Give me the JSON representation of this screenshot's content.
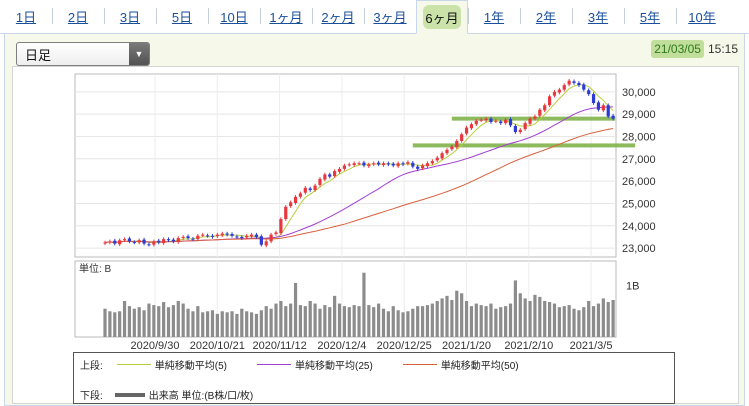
{
  "tabs": [
    {
      "label": "1日",
      "active": false
    },
    {
      "label": "2日",
      "active": false
    },
    {
      "label": "3日",
      "active": false
    },
    {
      "label": "5日",
      "active": false
    },
    {
      "label": "10日",
      "active": false
    },
    {
      "label": "1ヶ月",
      "active": false
    },
    {
      "label": "2ヶ月",
      "active": false
    },
    {
      "label": "3ヶ月",
      "active": false
    },
    {
      "label": "6ヶ月",
      "active": true
    },
    {
      "label": "1年",
      "active": false
    },
    {
      "label": "2年",
      "active": false
    },
    {
      "label": "3年",
      "active": false
    },
    {
      "label": "5年",
      "active": false
    },
    {
      "label": "10年",
      "active": false
    }
  ],
  "period_select": {
    "value": "日足"
  },
  "timestamp": {
    "date": "21/03/05",
    "time": "15:15"
  },
  "colors": {
    "up": "#e8383d",
    "down": "#2c3bd6",
    "ma5": "#b6cf3c",
    "ma25": "#a23ed2",
    "ma50": "#d9613d",
    "volume": "#8c8c8c",
    "highlight": "#7fb24a"
  },
  "price_axis": {
    "ticks": [
      "30,000",
      "29,000",
      "28,000",
      "27,000",
      "26,000",
      "25,000",
      "24,000",
      "23,000"
    ]
  },
  "volume_axis": {
    "unit_label": "単位: B",
    "tick": "1B"
  },
  "date_axis": {
    "labels": [
      "2020/9/30",
      "2020/10/21",
      "2020/11/12",
      "2020/12/4",
      "2020/12/25",
      "2021/1/20",
      "2021/2/10",
      "2021/3/5"
    ]
  },
  "legend": {
    "upper_label": "上段:",
    "lower_label": "下段:",
    "ma5": "単純移動平均(5)",
    "ma25": "単純移動平均(25)",
    "ma50": "単純移動平均(50)",
    "volume": "出来高 単位:(B株/口/枚)"
  },
  "chart_data": {
    "type": "candlestick",
    "ylim": [
      22600,
      30800
    ],
    "price_close": [
      23250,
      23300,
      23200,
      23350,
      23400,
      23300,
      23250,
      23350,
      23200,
      23150,
      23300,
      23250,
      23400,
      23350,
      23300,
      23450,
      23500,
      23450,
      23400,
      23550,
      23600,
      23550,
      23500,
      23600,
      23650,
      23600,
      23550,
      23500,
      23450,
      23550,
      23600,
      23500,
      23150,
      23300,
      23600,
      23700,
      24300,
      24850,
      25050,
      25300,
      25450,
      25700,
      25600,
      25800,
      26100,
      26300,
      26200,
      26450,
      26550,
      26700,
      26750,
      26800,
      26800,
      26700,
      26750,
      26800,
      26750,
      26800,
      26750,
      26700,
      26800,
      26750,
      26850,
      26650,
      26550,
      26700,
      26800,
      26900,
      27050,
      27250,
      27400,
      27550,
      27800,
      28100,
      28400,
      28550,
      28700,
      28750,
      28800,
      28650,
      28700,
      28600,
      28750,
      28500,
      28200,
      28300,
      28600,
      28800,
      28900,
      29200,
      29400,
      29800,
      30000,
      30100,
      30300,
      30500,
      30400,
      30300,
      30100,
      29900,
      29500,
      29200,
      29400,
      28900,
      28800
    ],
    "volume": [
      0.55,
      0.5,
      0.48,
      0.5,
      0.7,
      0.6,
      0.55,
      0.58,
      0.52,
      0.65,
      0.62,
      0.6,
      0.68,
      0.58,
      0.62,
      0.7,
      0.65,
      0.55,
      0.5,
      0.6,
      0.48,
      0.5,
      0.52,
      0.45,
      0.5,
      0.48,
      0.5,
      0.45,
      0.55,
      0.5,
      0.48,
      0.45,
      0.52,
      0.6,
      0.55,
      0.65,
      0.7,
      0.6,
      0.65,
      1.05,
      0.62,
      0.6,
      0.7,
      0.65,
      0.55,
      0.62,
      0.58,
      0.8,
      0.65,
      0.6,
      0.58,
      0.62,
      0.6,
      1.25,
      0.62,
      0.58,
      0.65,
      0.55,
      0.5,
      0.6,
      0.52,
      0.48,
      0.5,
      0.55,
      0.6,
      0.6,
      0.62,
      0.65,
      0.7,
      0.75,
      0.8,
      0.72,
      0.9,
      0.85,
      0.7,
      0.6,
      0.65,
      0.62,
      0.6,
      0.65,
      0.55,
      0.58,
      0.6,
      0.65,
      1.1,
      0.85,
      0.75,
      0.7,
      0.82,
      0.78,
      0.7,
      0.68,
      0.65,
      0.58,
      0.6,
      0.62,
      0.55,
      0.52,
      0.58,
      0.7,
      0.6,
      0.65,
      0.75,
      0.68,
      0.72
    ],
    "volume_unit": "B",
    "series": [
      {
        "name": "単純移動平均(5)"
      },
      {
        "name": "単純移動平均(25)"
      },
      {
        "name": "単純移動平均(50)"
      }
    ],
    "support_resistance": [
      28800,
      27600
    ]
  }
}
